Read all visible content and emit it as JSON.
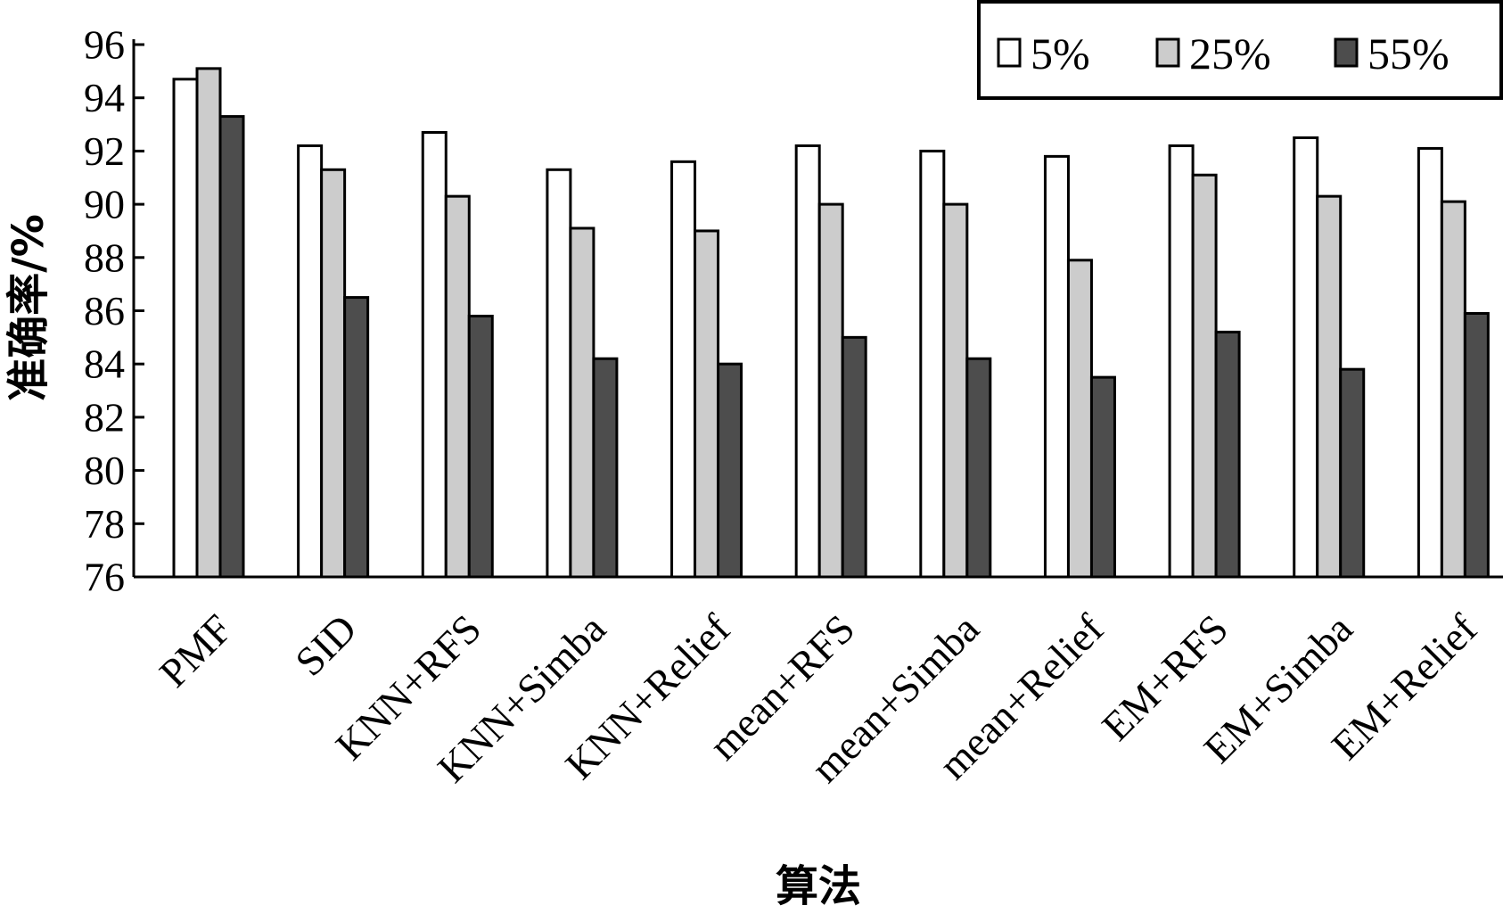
{
  "chart_data": {
    "type": "bar",
    "title": "",
    "xlabel": "算法",
    "ylabel": "准确率/%",
    "ylim": [
      76,
      96
    ],
    "yticks": [
      76,
      78,
      80,
      82,
      84,
      86,
      88,
      90,
      92,
      94,
      96
    ],
    "grid": false,
    "legend_position": "top-right",
    "categories": [
      "PMF",
      "SID",
      "KNN+RFS",
      "KNN+Simba",
      "KNN+Relief",
      "mean+RFS",
      "mean+Simba",
      "mean+Relief",
      "EM+RFS",
      "EM+Simba",
      "EM+Relief"
    ],
    "series": [
      {
        "name": "5%",
        "color": "#ffffff",
        "values": [
          94.7,
          92.2,
          92.7,
          91.3,
          91.6,
          92.2,
          92.0,
          91.8,
          92.2,
          92.5,
          92.1
        ]
      },
      {
        "name": "25%",
        "color": "#cccccc",
        "values": [
          95.1,
          91.3,
          90.3,
          89.1,
          89.0,
          90.0,
          90.0,
          87.9,
          91.1,
          90.3,
          90.1
        ]
      },
      {
        "name": "55%",
        "color": "#4d4d4d",
        "values": [
          93.3,
          86.5,
          85.8,
          84.2,
          84.0,
          85.0,
          84.2,
          83.5,
          85.2,
          83.8,
          85.9
        ]
      }
    ]
  }
}
